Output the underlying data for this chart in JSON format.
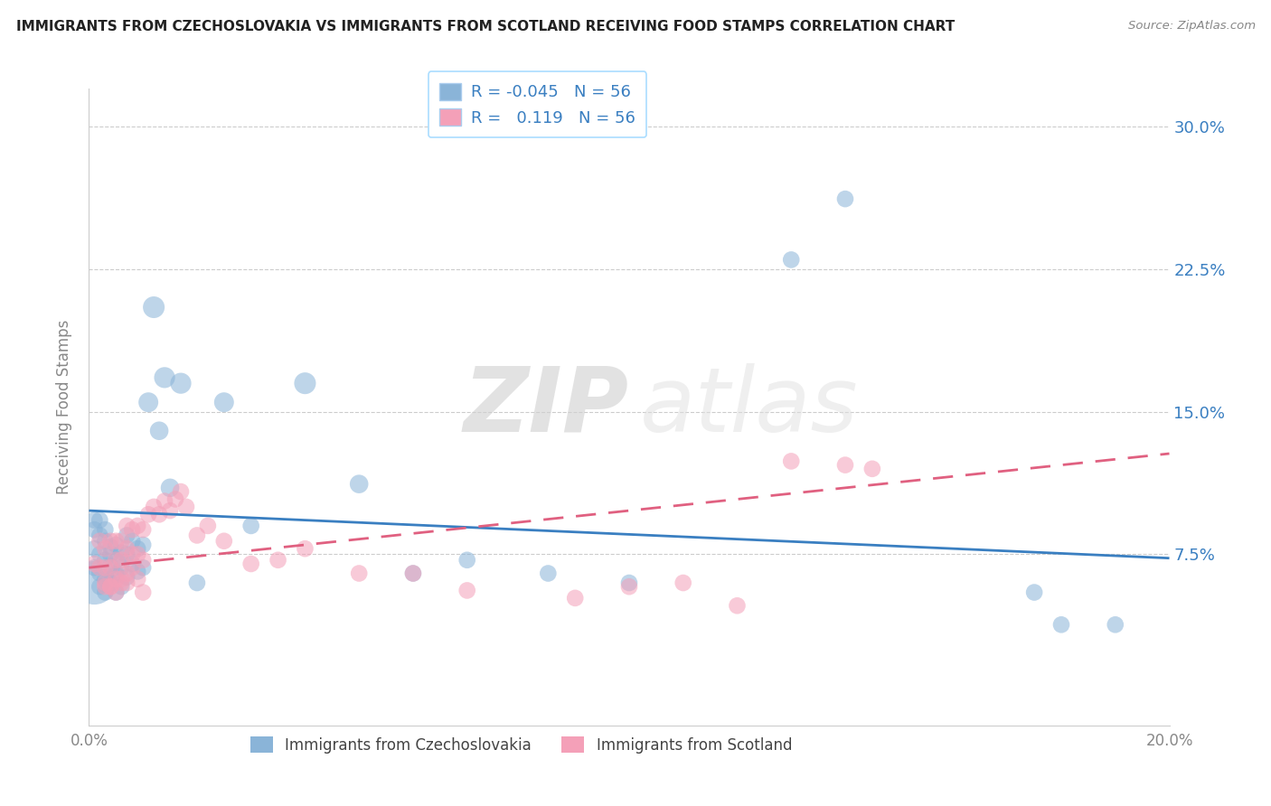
{
  "title": "IMMIGRANTS FROM CZECHOSLOVAKIA VS IMMIGRANTS FROM SCOTLAND RECEIVING FOOD STAMPS CORRELATION CHART",
  "source": "Source: ZipAtlas.com",
  "ylabel": "Receiving Food Stamps",
  "xlim": [
    0.0,
    0.2
  ],
  "ylim": [
    -0.015,
    0.32
  ],
  "legend_r_czech": "-0.045",
  "legend_n_czech": "56",
  "legend_r_scot": "0.119",
  "legend_n_scot": "56",
  "color_czech": "#8ab4d8",
  "color_scot": "#f4a0b8",
  "trendline_color_czech": "#3a7fc1",
  "trendline_color_scot": "#e06080",
  "watermark_zip": "ZIP",
  "watermark_atlas": "atlas",
  "czech_x": [
    0.001,
    0.001,
    0.001,
    0.002,
    0.002,
    0.002,
    0.002,
    0.003,
    0.003,
    0.003,
    0.003,
    0.004,
    0.004,
    0.004,
    0.005,
    0.005,
    0.005,
    0.005,
    0.006,
    0.006,
    0.006,
    0.007,
    0.007,
    0.007,
    0.008,
    0.008,
    0.009,
    0.009,
    0.01,
    0.01,
    0.011,
    0.012,
    0.013,
    0.014,
    0.015,
    0.017,
    0.02,
    0.025,
    0.03,
    0.04,
    0.05,
    0.06,
    0.07,
    0.085,
    0.1,
    0.13,
    0.14,
    0.175,
    0.19,
    0.001,
    0.001,
    0.002,
    0.003,
    0.004,
    0.005,
    0.18
  ],
  "czech_y": [
    0.088,
    0.078,
    0.068,
    0.085,
    0.075,
    0.065,
    0.058,
    0.082,
    0.072,
    0.062,
    0.055,
    0.079,
    0.069,
    0.06,
    0.08,
    0.072,
    0.064,
    0.055,
    0.076,
    0.068,
    0.058,
    0.085,
    0.075,
    0.063,
    0.082,
    0.07,
    0.078,
    0.066,
    0.08,
    0.068,
    0.155,
    0.205,
    0.14,
    0.168,
    0.11,
    0.165,
    0.06,
    0.155,
    0.09,
    0.165,
    0.112,
    0.065,
    0.072,
    0.065,
    0.06,
    0.23,
    0.262,
    0.055,
    0.038,
    0.06,
    0.093,
    0.093,
    0.088,
    0.075,
    0.065,
    0.038
  ],
  "czech_size": [
    18,
    18,
    18,
    18,
    18,
    18,
    18,
    18,
    18,
    18,
    18,
    18,
    18,
    18,
    18,
    18,
    18,
    18,
    18,
    18,
    18,
    18,
    18,
    18,
    18,
    18,
    18,
    18,
    18,
    18,
    25,
    30,
    22,
    28,
    22,
    28,
    18,
    25,
    18,
    30,
    22,
    18,
    18,
    18,
    18,
    18,
    18,
    18,
    18,
    120,
    18,
    18,
    18,
    18,
    18,
    18
  ],
  "scot_x": [
    0.001,
    0.002,
    0.002,
    0.003,
    0.003,
    0.003,
    0.004,
    0.004,
    0.004,
    0.005,
    0.005,
    0.005,
    0.006,
    0.006,
    0.006,
    0.007,
    0.007,
    0.007,
    0.008,
    0.008,
    0.009,
    0.009,
    0.01,
    0.01,
    0.011,
    0.012,
    0.013,
    0.014,
    0.015,
    0.016,
    0.017,
    0.018,
    0.02,
    0.022,
    0.025,
    0.03,
    0.035,
    0.04,
    0.05,
    0.06,
    0.07,
    0.09,
    0.1,
    0.11,
    0.12,
    0.14,
    0.003,
    0.004,
    0.005,
    0.006,
    0.007,
    0.008,
    0.009,
    0.01,
    0.13,
    0.145
  ],
  "scot_y": [
    0.07,
    0.082,
    0.068,
    0.078,
    0.068,
    0.058,
    0.082,
    0.068,
    0.058,
    0.082,
    0.072,
    0.062,
    0.082,
    0.072,
    0.06,
    0.09,
    0.078,
    0.065,
    0.088,
    0.075,
    0.09,
    0.075,
    0.088,
    0.072,
    0.096,
    0.1,
    0.096,
    0.103,
    0.098,
    0.104,
    0.108,
    0.1,
    0.085,
    0.09,
    0.082,
    0.07,
    0.072,
    0.078,
    0.065,
    0.065,
    0.056,
    0.052,
    0.058,
    0.06,
    0.048,
    0.122,
    0.06,
    0.058,
    0.055,
    0.062,
    0.06,
    0.068,
    0.062,
    0.055,
    0.124,
    0.12
  ],
  "scot_size": [
    18,
    18,
    18,
    18,
    18,
    18,
    18,
    18,
    18,
    18,
    18,
    18,
    18,
    18,
    18,
    18,
    18,
    18,
    18,
    18,
    18,
    18,
    18,
    18,
    18,
    18,
    18,
    18,
    18,
    18,
    18,
    18,
    18,
    18,
    18,
    18,
    18,
    18,
    18,
    18,
    18,
    18,
    18,
    18,
    18,
    18,
    18,
    18,
    18,
    18,
    18,
    18,
    18,
    18,
    18,
    18
  ],
  "czech_trendline_x": [
    0.0,
    0.2
  ],
  "czech_trendline_y": [
    0.098,
    0.073
  ],
  "scot_trendline_x": [
    0.0,
    0.2
  ],
  "scot_trendline_y": [
    0.068,
    0.128
  ]
}
